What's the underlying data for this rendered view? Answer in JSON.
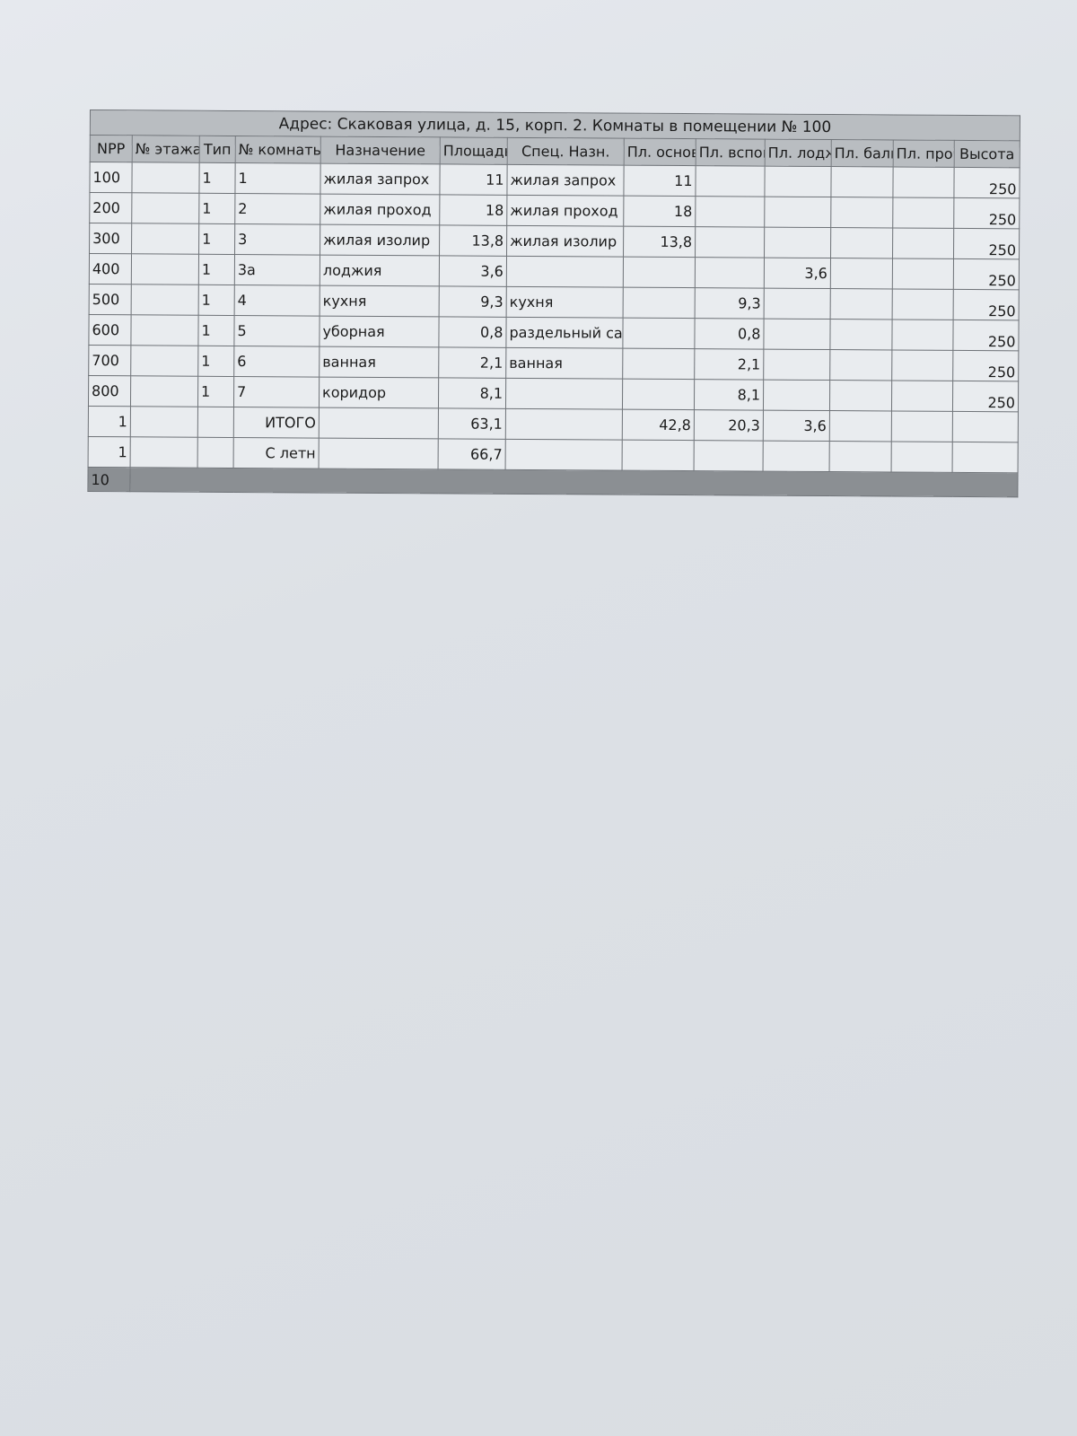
{
  "title": "Адрес: Скаковая улица, д. 15, корп. 2. Комнаты в помещении № 100",
  "columns": [
    "NPP",
    "№ этажа",
    "Тип",
    "№ комнаты",
    "Назначение",
    "Площадь",
    "Спец. Назн.",
    "Пл. основ",
    "Пл. вспом",
    "Пл. лодж",
    "Пл. балк",
    "Пл. проч",
    "Высота"
  ],
  "rows": [
    [
      "100",
      "",
      "1",
      "1",
      "жилая запрох",
      "11",
      "жилая запрох",
      "11",
      "",
      "",
      "",
      "",
      "250"
    ],
    [
      "200",
      "",
      "1",
      "2",
      "жилая проход",
      "18",
      "жилая проход",
      "18",
      "",
      "",
      "",
      "",
      "250"
    ],
    [
      "300",
      "",
      "1",
      "3",
      "жилая изолир",
      "13,8",
      "жилая изолир",
      "13,8",
      "",
      "",
      "",
      "",
      "250"
    ],
    [
      "400",
      "",
      "1",
      "3а",
      "лоджия",
      "3,6",
      "",
      "",
      "",
      "3,6",
      "",
      "",
      "250"
    ],
    [
      "500",
      "",
      "1",
      "4",
      "кухня",
      "9,3",
      "кухня",
      "",
      "9,3",
      "",
      "",
      "",
      "250"
    ],
    [
      "600",
      "",
      "1",
      "5",
      "уборная",
      "0,8",
      "раздельный са",
      "",
      "0,8",
      "",
      "",
      "",
      "250"
    ],
    [
      "700",
      "",
      "1",
      "6",
      "ванная",
      "2,1",
      "ванная",
      "",
      "2,1",
      "",
      "",
      "",
      "250"
    ],
    [
      "800",
      "",
      "1",
      "7",
      "коридор",
      "8,1",
      "",
      "",
      "8,1",
      "",
      "",
      "",
      "250"
    ],
    [
      "1",
      "",
      "",
      "ИТОГО",
      "",
      "63,1",
      "",
      "42,8",
      "20,3",
      "3,6",
      "",
      "",
      ""
    ],
    [
      "1",
      "",
      "",
      "С летн",
      "",
      "66,7",
      "",
      "",
      "",
      "",
      "",
      "",
      ""
    ]
  ],
  "footer": "10"
}
